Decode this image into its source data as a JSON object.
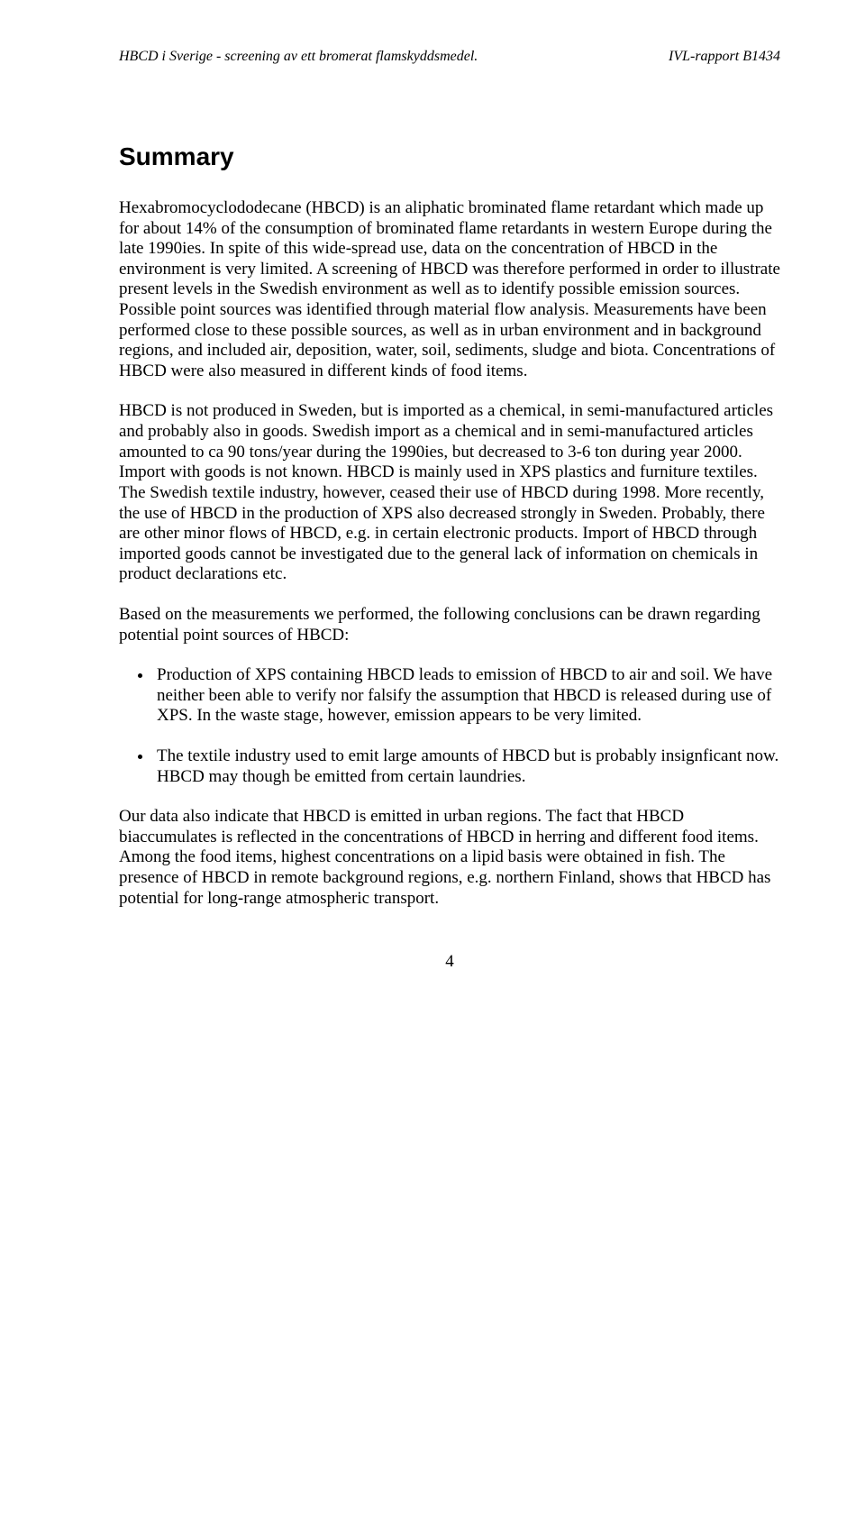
{
  "header": {
    "left": "HBCD i Sverige - screening av ett bromerat flamskyddsmedel.",
    "right": "IVL-rapport B1434"
  },
  "title": "Summary",
  "paragraphs": {
    "p1": "Hexabromocyclododecane (HBCD) is an aliphatic brominated flame retardant which made up for about 14% of the consumption of brominated flame retardants in western Europe during the late 1990ies. In spite of this wide-spread use, data on the concentration of HBCD in the environment is very limited. A screening of HBCD was therefore performed in order to illustrate present levels in the Swedish environment as well as to identify possible emission sources. Possible point sources was identified through material flow analysis. Measurements have been performed close to these possible sources, as well as in urban environment and in background regions, and included air, deposition, water, soil, sediments, sludge and biota. Concentrations of HBCD were also measured in different kinds of food items.",
    "p2": "HBCD is not produced in Sweden, but is imported as a chemical, in semi-manufactured articles and probably also in goods. Swedish import as a chemical and in semi-manufactured articles amounted to ca 90 tons/year during the 1990ies, but decreased to 3-6 ton during year 2000. Import with goods is not known. HBCD is mainly used in XPS plastics and furniture textiles. The Swedish textile industry, however, ceased their use of HBCD during 1998. More recently, the use of HBCD in the production of XPS also decreased strongly in Sweden. Probably, there are other minor flows of HBCD, e.g. in certain electronic products. Import of HBCD through imported goods cannot be investigated due to the general lack of information on chemicals in product declarations etc.",
    "p3": "Based on the measurements we performed, the following conclusions can be drawn regarding potential point sources of HBCD:",
    "p4": "Our data also indicate that HBCD is emitted in urban regions. The fact that HBCD biaccumulates is reflected in the concentrations of HBCD in herring and different food items. Among the food items, highest concentrations on a lipid basis were obtained in fish. The presence of HBCD in remote background regions, e.g. northern Finland, shows that HBCD has potential for long-range atmospheric transport."
  },
  "bullets": [
    "Production of XPS containing HBCD leads to emission of HBCD to air and soil. We have neither been able to verify nor falsify the assumption that HBCD is released during use of XPS. In the waste stage, however, emission appears to be very limited.",
    "The textile industry used to emit large amounts of HBCD but is probably insignficant now. HBCD may though be emitted from certain laundries."
  ],
  "pageNumber": "4"
}
